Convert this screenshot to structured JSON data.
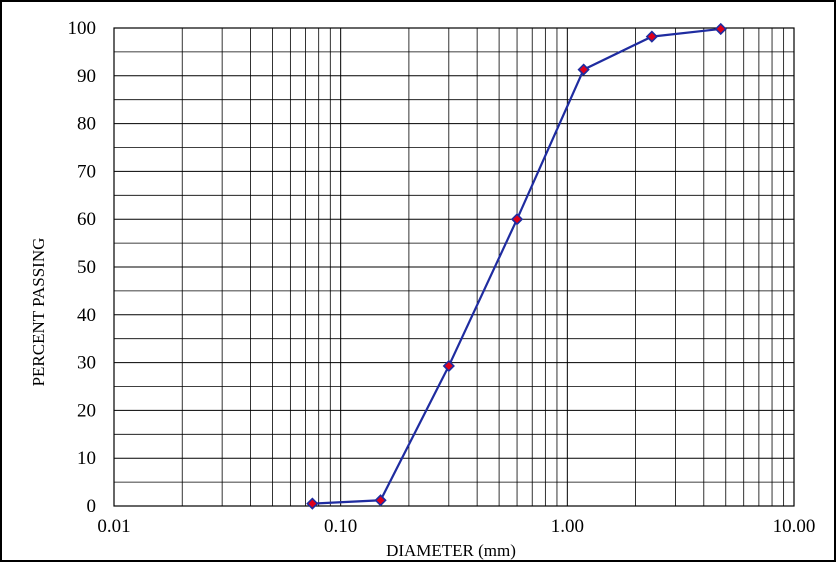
{
  "chart_data": {
    "type": "scatter",
    "title": "",
    "xlabel": "DIAMETER (mm)",
    "ylabel": "PERCENT PASSING",
    "x_scale": "log",
    "xlim": [
      0.01,
      10
    ],
    "ylim": [
      0,
      100
    ],
    "x_ticks": [
      0.01,
      0.1,
      1,
      10
    ],
    "x_tick_labels": [
      "0.01",
      "0.10",
      "1.00",
      "10.00"
    ],
    "y_ticks": [
      0,
      10,
      20,
      30,
      40,
      50,
      60,
      70,
      80,
      90,
      100
    ],
    "y_tick_labels": [
      "0",
      "10",
      "20",
      "30",
      "40",
      "50",
      "60",
      "70",
      "80",
      "90",
      "100"
    ],
    "grid": true,
    "legend": "none",
    "series": [
      {
        "x": [
          0.075,
          0.15,
          0.3,
          0.6,
          1.18,
          2.36,
          4.75
        ],
        "y": [
          0.5,
          1.2,
          29.3,
          60.0,
          91.3,
          98.2,
          99.8
        ],
        "line_color": "#1f2ca0",
        "marker": "diamond",
        "marker_color": "#e0001b"
      }
    ]
  }
}
